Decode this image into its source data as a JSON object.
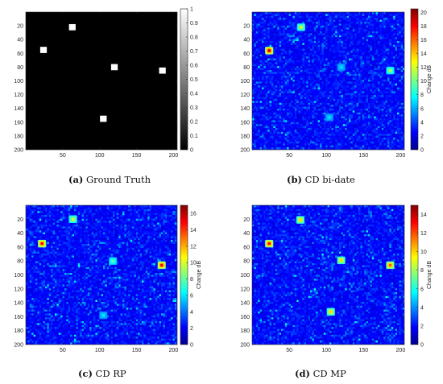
{
  "chart_data": [
    {
      "type": "heatmap",
      "panel_letter": "(a)",
      "caption_text": "Ground Truth",
      "colormap": "gray",
      "xlim": [
        0,
        205
      ],
      "ylim": [
        0,
        200
      ],
      "xticks": [
        50,
        100,
        150,
        200
      ],
      "yticks": [
        20,
        40,
        60,
        80,
        100,
        120,
        140,
        160,
        180,
        200
      ],
      "colorbar": {
        "min": 0,
        "max": 1,
        "ticks": [
          0,
          0.1,
          0.2,
          0.3,
          0.4,
          0.5,
          0.6,
          0.7,
          0.8,
          0.9,
          1
        ],
        "label": ""
      },
      "targets": [
        {
          "x": 63,
          "y": 22,
          "value": 1
        },
        {
          "x": 24,
          "y": 55,
          "value": 1
        },
        {
          "x": 120,
          "y": 80,
          "value": 1
        },
        {
          "x": 185,
          "y": 85,
          "value": 1
        },
        {
          "x": 105,
          "y": 155,
          "value": 1
        }
      ]
    },
    {
      "type": "heatmap",
      "panel_letter": "(b)",
      "caption_text": "CD bi-date",
      "colormap": "jet",
      "xlim": [
        0,
        205
      ],
      "ylim": [
        0,
        200
      ],
      "xticks": [
        50,
        100,
        150,
        200
      ],
      "yticks": [
        20,
        40,
        60,
        80,
        100,
        120,
        140,
        160,
        180,
        200
      ],
      "colorbar": {
        "min": 0,
        "max": 20.5,
        "ticks": [
          0,
          2,
          4,
          6,
          8,
          10,
          12,
          14,
          16,
          18,
          20
        ],
        "label": "Change dB"
      },
      "background_level": 2,
      "targets": [
        {
          "x": 66,
          "y": 22,
          "value": 12
        },
        {
          "x": 23,
          "y": 56,
          "value": 19
        },
        {
          "x": 120,
          "y": 80,
          "value": 7
        },
        {
          "x": 186,
          "y": 85,
          "value": 11
        },
        {
          "x": 104,
          "y": 153,
          "value": 7
        }
      ]
    },
    {
      "type": "heatmap",
      "panel_letter": "(c)",
      "caption_text": "CD RP",
      "colormap": "jet",
      "xlim": [
        0,
        205
      ],
      "ylim": [
        0,
        200
      ],
      "xticks": [
        50,
        100,
        150,
        200
      ],
      "yticks": [
        20,
        40,
        60,
        80,
        100,
        120,
        140,
        160,
        180,
        200
      ],
      "colorbar": {
        "min": 0,
        "max": 17,
        "ticks": [
          0,
          2,
          4,
          6,
          8,
          10,
          12,
          14,
          16
        ],
        "label": "Change dB"
      },
      "background_level": 2,
      "targets": [
        {
          "x": 64,
          "y": 20,
          "value": 10
        },
        {
          "x": 22,
          "y": 55,
          "value": 15
        },
        {
          "x": 118,
          "y": 80,
          "value": 8
        },
        {
          "x": 184,
          "y": 86,
          "value": 15
        },
        {
          "x": 105,
          "y": 158,
          "value": 6
        }
      ]
    },
    {
      "type": "heatmap",
      "panel_letter": "(d)",
      "caption_text": "CD MP",
      "colormap": "jet",
      "xlim": [
        0,
        205
      ],
      "ylim": [
        0,
        200
      ],
      "xticks": [
        50,
        100,
        150,
        200
      ],
      "yticks": [
        20,
        40,
        60,
        80,
        100,
        120,
        140,
        160,
        180,
        200
      ],
      "colorbar": {
        "min": 0,
        "max": 15,
        "ticks": [
          0,
          2,
          4,
          6,
          8,
          10,
          12,
          14
        ],
        "label": "Change dB"
      },
      "background_level": 2,
      "targets": [
        {
          "x": 65,
          "y": 21,
          "value": 10
        },
        {
          "x": 23,
          "y": 55,
          "value": 13
        },
        {
          "x": 120,
          "y": 79,
          "value": 10
        },
        {
          "x": 186,
          "y": 86,
          "value": 12
        },
        {
          "x": 106,
          "y": 153,
          "value": 10
        }
      ]
    }
  ]
}
